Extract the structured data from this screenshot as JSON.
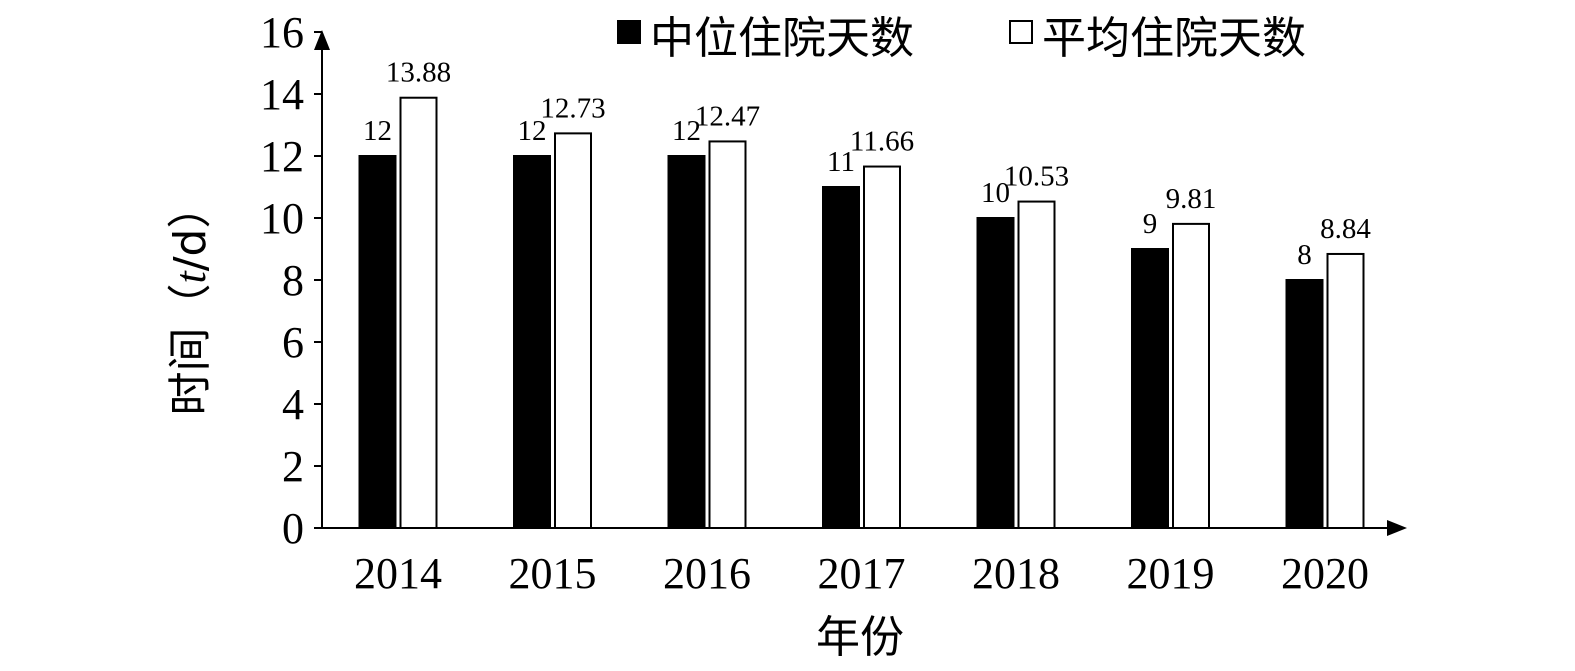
{
  "chart_data": {
    "type": "bar",
    "title": "",
    "categories": [
      "2014",
      "2015",
      "2016",
      "2017",
      "2018",
      "2019",
      "2020"
    ],
    "series": [
      {
        "name": "中位住院天数",
        "values": [
          12,
          12,
          12,
          11,
          10,
          9,
          8
        ],
        "color": "#000000"
      },
      {
        "name": "平均住院天数",
        "values": [
          13.88,
          12.73,
          12.47,
          11.66,
          10.53,
          9.81,
          8.84
        ],
        "color": "#ffffff"
      }
    ],
    "data_labels": [
      [
        "12",
        "12",
        "12",
        "11",
        "10",
        "9",
        "8"
      ],
      [
        "13.88",
        "12.73",
        "12.47",
        "11.66",
        "10.53",
        "9.81",
        "8.84"
      ]
    ],
    "xlabel": "年份",
    "ylabel": {
      "main": "时间（",
      "italic": "t",
      "suffix": "/d）"
    },
    "ylim": [
      0,
      16
    ],
    "yticks": [
      "0",
      "2",
      "4",
      "6",
      "8",
      "10",
      "12",
      "14",
      "16"
    ],
    "grid": false,
    "legend_position": "top-right"
  }
}
